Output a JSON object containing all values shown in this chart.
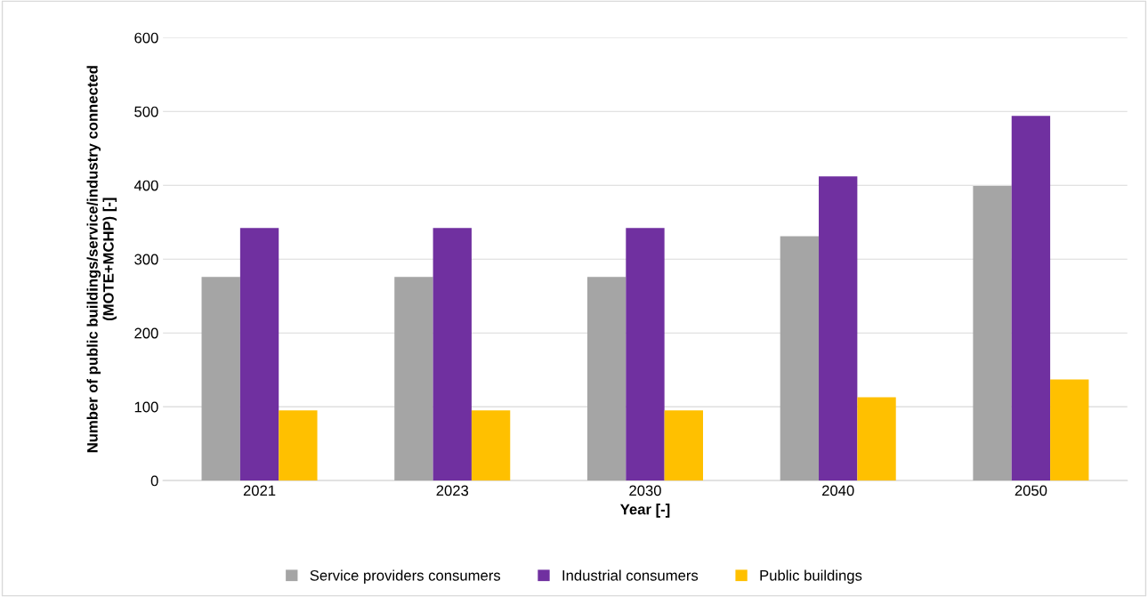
{
  "chart_data": {
    "type": "bar",
    "xlabel": "Year [-]",
    "ylabel": "Number of public buildings/service/industry connected\n(MOTE+MCHP) [-]",
    "categories": [
      "2021",
      "2023",
      "2030",
      "2040",
      "2050"
    ],
    "series": [
      {
        "name": "Service providers consumers",
        "color": "#a5a5a5",
        "values": [
          276,
          276,
          276,
          331,
          399
        ]
      },
      {
        "name": "Industrial consumers",
        "color": "#7030a0",
        "values": [
          342,
          342,
          342,
          412,
          494
        ]
      },
      {
        "name": "Public buildings",
        "color": "#ffc000",
        "values": [
          95,
          95,
          95,
          113,
          137
        ]
      }
    ],
    "ylim": [
      0,
      600
    ],
    "yticks": [
      0,
      100,
      200,
      300,
      400,
      500,
      600
    ],
    "grid": "y",
    "legend": "bottom"
  }
}
